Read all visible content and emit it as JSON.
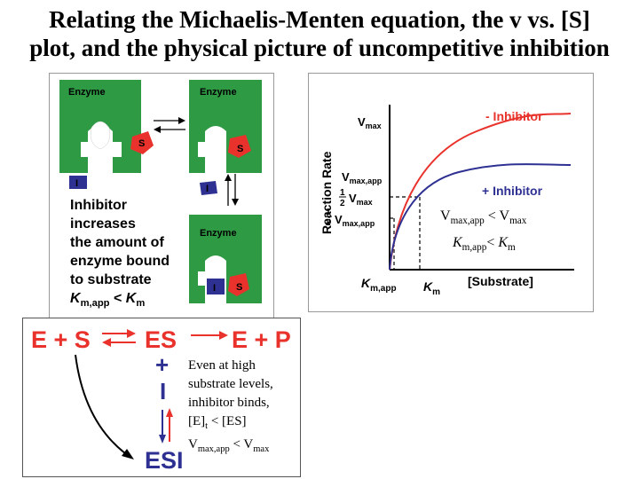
{
  "title": {
    "line1": "Relating the Michaelis-Menten equation, the v vs. [S]",
    "line2": "plot, and the physical picture of uncompetitive inhibition"
  },
  "enzyme_panel": {
    "enzyme_label": "Enzyme",
    "substrate_label": "S",
    "inhibitor_label": "I",
    "description_lines": [
      "Inhibitor",
      "increases",
      "the amount of",
      "enzyme bound",
      "to substrate"
    ],
    "km_relation": {
      "k_left": "K",
      "sub_left": "m,app",
      "op": " < ",
      "k_right": "K",
      "sub_right": "m"
    }
  },
  "graph": {
    "ylabel": "Reaction Rate",
    "xlabel": "[Substrate]",
    "vmax_label": {
      "main": "V",
      "sub": "max"
    },
    "vmax_app_label": {
      "main": "V",
      "sub": "max,app"
    },
    "half_vmax_label": {
      "num": "1",
      "den": "2",
      "main": "V",
      "sub": "max"
    },
    "half_vmax_app_label": {
      "num": "1",
      "den": "2",
      "main": "V",
      "sub": "max,app"
    },
    "km_app_label": {
      "main": "K",
      "sub": "m,app"
    },
    "km_label": {
      "main": "K",
      "sub": "m"
    },
    "series": [
      {
        "name": "- Inhibitor",
        "color": "#e8322b"
      },
      {
        "name": "+ Inhibitor",
        "color": "#2e3192"
      }
    ]
  },
  "notes": {
    "vmax_relation": {
      "left": "V",
      "left_sub": "max,app",
      "op": " < ",
      "right": "V",
      "right_sub": "max"
    },
    "km_relation": {
      "left": "K",
      "left_sub": "m,app",
      "op": "< ",
      "right": "K",
      "right_sub": "m"
    }
  },
  "scheme": {
    "e_plus_s": "E + S",
    "es": "ES",
    "e_plus_p": "E + P",
    "plus_sign": "+",
    "inhibitor": "I",
    "esi": "ESI",
    "red_color": "#e8322b",
    "blue_color": "#2e3192",
    "note_lines": [
      "Even at high",
      "substrate levels,",
      "inhibitor binds,"
    ],
    "et_line": {
      "left": "[E]",
      "left_sub": "t",
      "op": " < ",
      "right": "[ES]"
    },
    "vmax_line": {
      "left": "V",
      "left_sub": "max,app",
      "op": " < ",
      "right": "V",
      "right_sub": "max"
    }
  },
  "colors": {
    "enzyme_green": "#2f9a44",
    "substrate_red": "#e8322b",
    "inhibitor_blue": "#2e3192"
  }
}
